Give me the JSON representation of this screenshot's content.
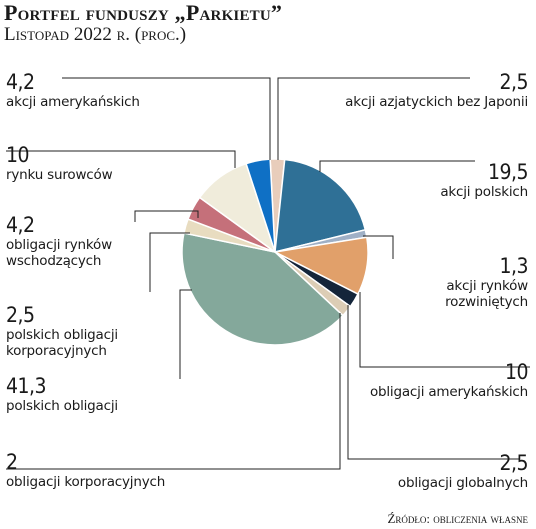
{
  "title": "Portfel funduszy „Parkietu”",
  "subtitle": "Listopad 2022 r. (proc.)",
  "source": "Źródło: obliczenia własne",
  "chart_data": {
    "type": "pie",
    "slices": [
      {
        "label": "akcji azjatyckich bez Japonii",
        "value": 2.5,
        "display": "2,5",
        "color": "#e8cdbb"
      },
      {
        "label": "akcji polskich",
        "value": 19.5,
        "display": "19,5",
        "color": "#2f7096"
      },
      {
        "label": "akcji rynków rozwiniętych",
        "value": 1.3,
        "display": "1,3",
        "color": "#9fb0c6"
      },
      {
        "label": "obligacji amerykańskich",
        "value": 10,
        "display": "10",
        "color": "#e1a06a"
      },
      {
        "label": "obligacji globalnych",
        "value": 2.5,
        "display": "2,5",
        "color": "#14253a"
      },
      {
        "label": "obligacji korporacyjnych",
        "value": 2,
        "display": "2",
        "color": "#dccdb5"
      },
      {
        "label": "polskich obligacji",
        "value": 41.3,
        "display": "41,3",
        "color": "#84a89b"
      },
      {
        "label": "polskich obligacji korporacyjnych",
        "value": 2.5,
        "display": "2,5",
        "color": "#e8dcc0"
      },
      {
        "label": "obligacji rynków wschodzących",
        "value": 4.2,
        "display": "4,2",
        "color": "#c5707a"
      },
      {
        "label": "rynku surowców",
        "value": 10,
        "display": "10",
        "color": "#f0ecdb"
      },
      {
        "label": "akcji amerykańskich",
        "value": 4.2,
        "display": "4,2",
        "color": "#0f70c5"
      }
    ]
  },
  "labels": {
    "akcji_amer": {
      "value": "4,2",
      "caption": "akcji amerykańskich"
    },
    "surowcow": {
      "value": "10",
      "caption": "rynku surowców"
    },
    "wschodzacych": {
      "value": "4,2",
      "caption1": "obligacji rynków",
      "caption2": "wschodzących"
    },
    "pol_korp": {
      "value": "2,5",
      "caption1": "polskich obligacji",
      "caption2": "korporacyjnych"
    },
    "pol_oblig": {
      "value": "41,3",
      "caption": "polskich obligacji"
    },
    "oblig_korp": {
      "value": "2",
      "caption": "obligacji korporacyjnych"
    },
    "azjat": {
      "value": "2,5",
      "caption": "akcji azjatyckich bez Japonii"
    },
    "polskich": {
      "value": "19,5",
      "caption": "akcji polskich"
    },
    "rozwinietych": {
      "value": "1,3",
      "caption1": "akcji rynków",
      "caption2": "rozwiniętych"
    },
    "amer_oblig": {
      "value": "10",
      "caption": "obligacji amerykańskich"
    },
    "globalnych": {
      "value": "2,5",
      "caption": "obligacji globalnych"
    }
  }
}
